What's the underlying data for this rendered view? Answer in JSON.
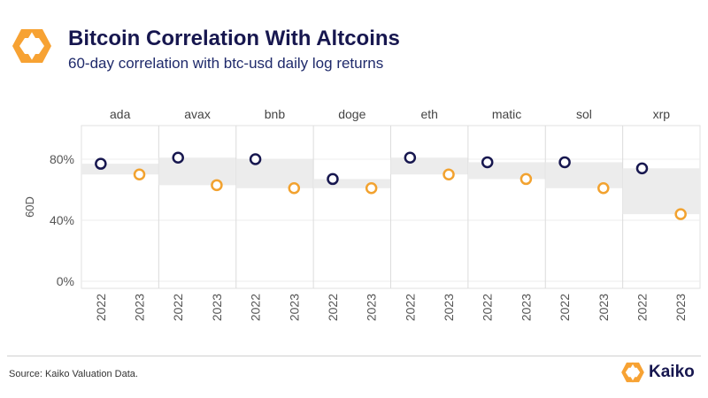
{
  "header": {
    "title": "Bitcoin Correlation With Altcoins",
    "subtitle": "60-day correlation with btc-usd daily log returns"
  },
  "footer": {
    "source": "Source: Kaiko Valuation Data.",
    "brand": "Kaiko"
  },
  "colors": {
    "series_2022": "#17174f",
    "series_2023": "#f2a22f",
    "band": "#ececec",
    "logo_orange": "#f7a233"
  },
  "chart_data": {
    "type": "scatter",
    "panels": [
      "ada",
      "avax",
      "bnb",
      "doge",
      "eth",
      "matic",
      "sol",
      "xrp"
    ],
    "categories": [
      "2022",
      "2023"
    ],
    "ylabel": "60D",
    "y_ticks": [
      "0%",
      "40%",
      "80%"
    ],
    "y_tick_values": [
      0,
      40,
      80
    ],
    "ylim": [
      0,
      100
    ],
    "series": [
      {
        "values": [
          77,
          81,
          80,
          67,
          81,
          78,
          78,
          74
        ]
      },
      {
        "values": [
          70,
          63,
          61,
          61,
          70,
          67,
          61,
          44
        ]
      }
    ],
    "grid": true
  }
}
